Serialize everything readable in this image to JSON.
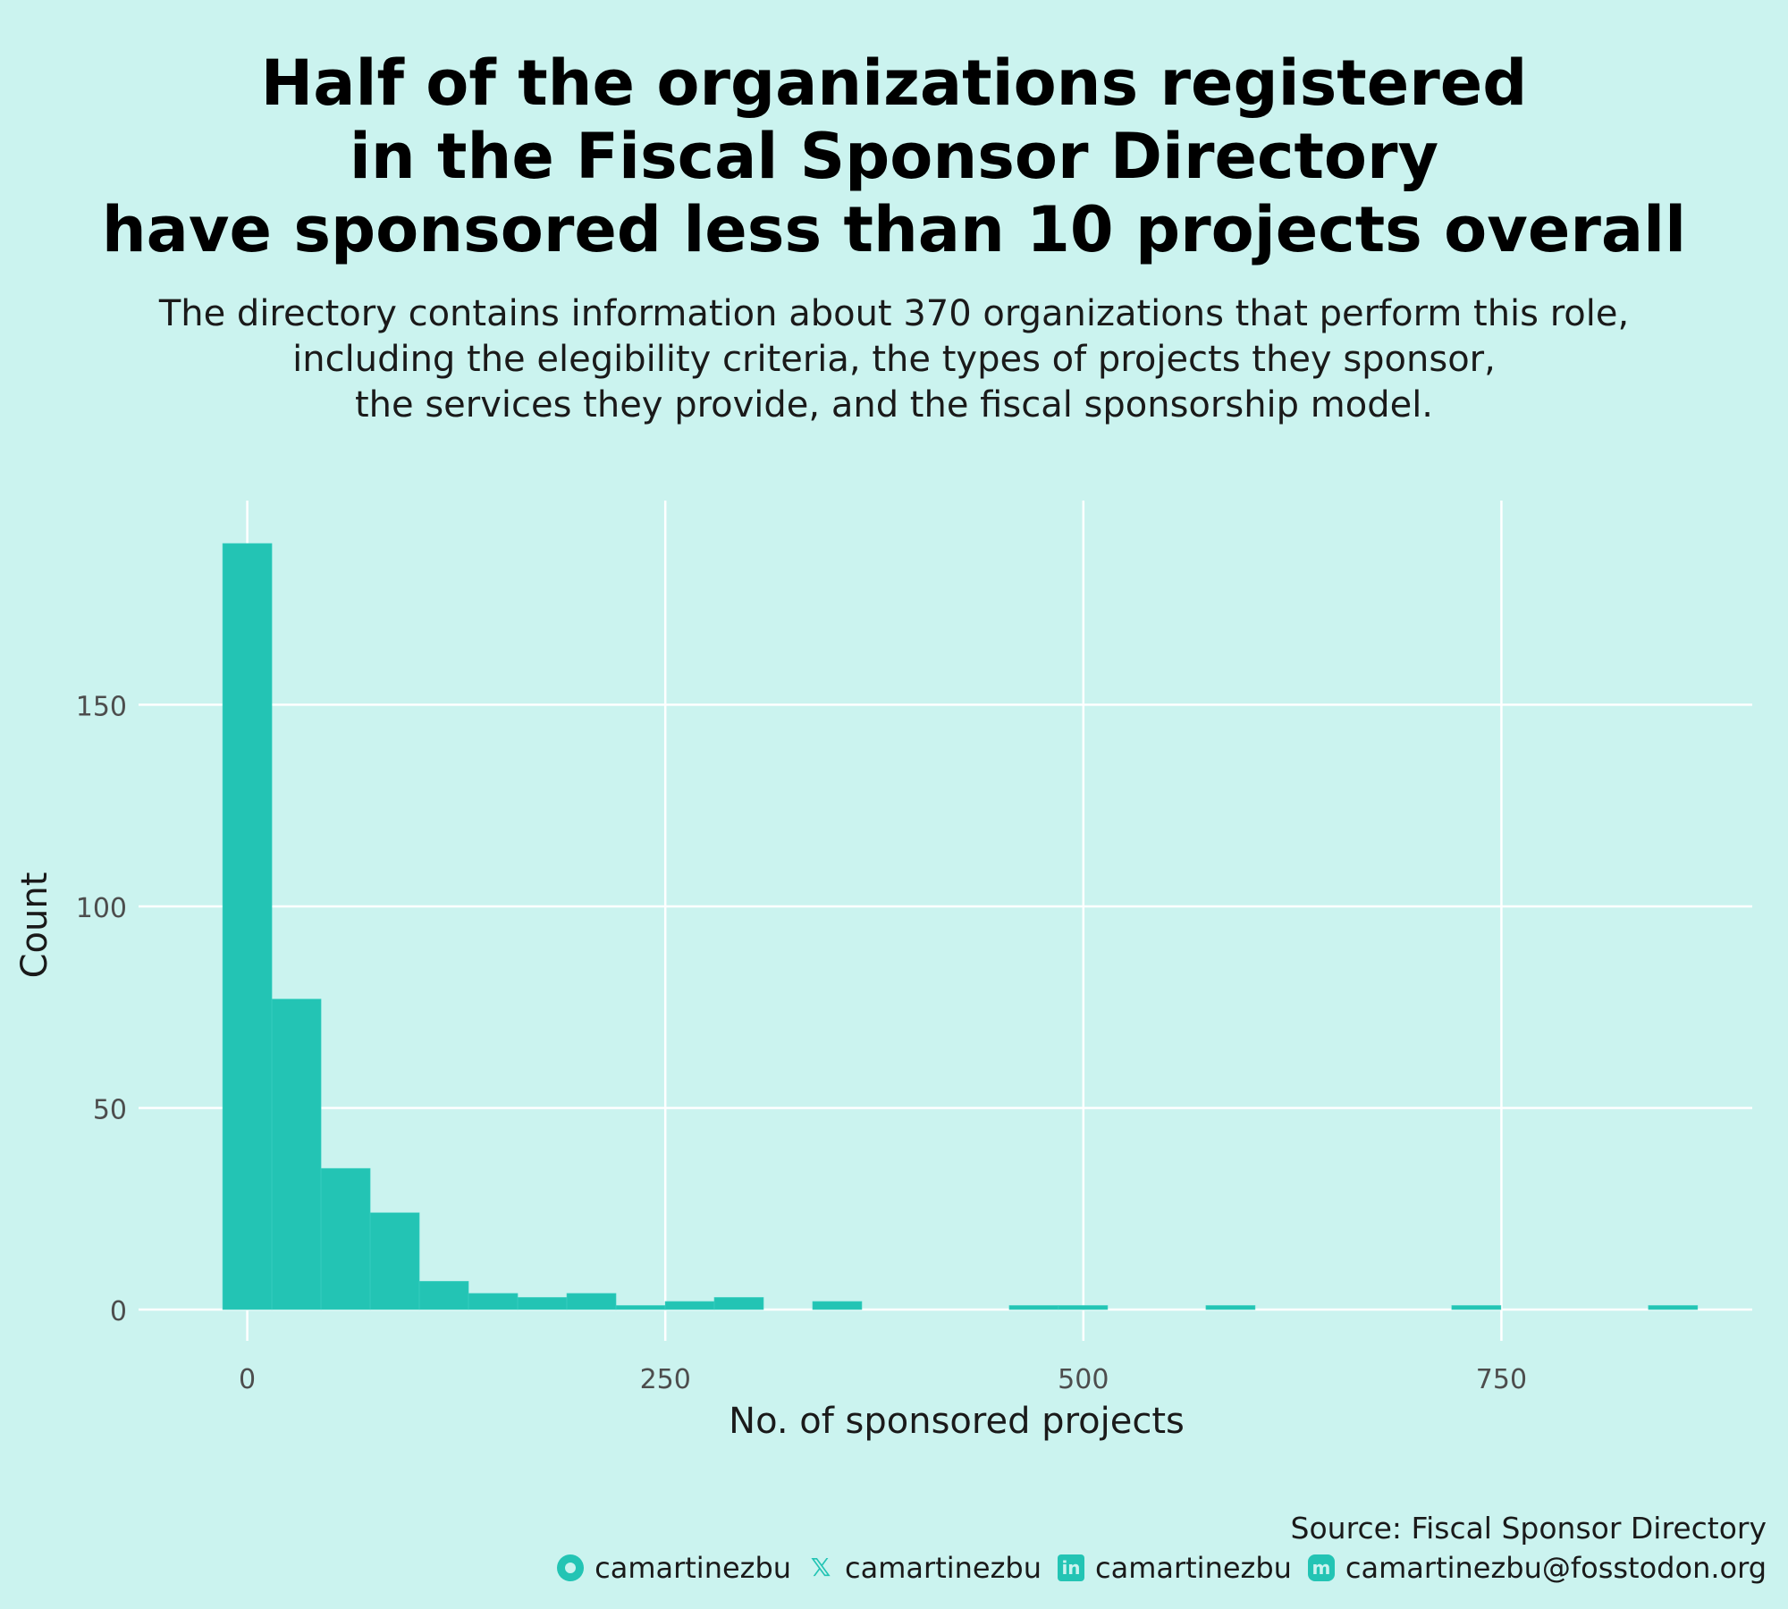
{
  "title_lines": [
    "Half of the organizations registered",
    "in the Fiscal Sponsor Directory",
    "have sponsored less than 10 projects overall"
  ],
  "subtitle_lines": [
    "The directory contains information about 370 organizations that perform this role,",
    "including the elegibility criteria, the types of projects they sponsor,",
    "the services they provide, and the fiscal sponsorship model."
  ],
  "source": "Source: Fiscal Sponsor Directory",
  "socials": [
    {
      "icon": "github-icon",
      "glyph": "",
      "label": "camartinezbu"
    },
    {
      "icon": "x-icon",
      "glyph": "𝕏",
      "label": "camartinezbu"
    },
    {
      "icon": "linkedin-icon",
      "glyph": "in",
      "label": "camartinezbu"
    },
    {
      "icon": "mastodon-icon",
      "glyph": "m",
      "label": "camartinezbu@fosstodon.org"
    }
  ],
  "colors": {
    "background": "#cbf3ef",
    "bar": "#23c4b4",
    "grid": "#ffffff",
    "tick_text": "#4d4d4d"
  },
  "chart_data": {
    "type": "bar",
    "subtype": "histogram",
    "xlabel": "No. of sponsored projects",
    "ylabel": "Count",
    "xlim": [
      -65,
      900
    ],
    "ylim": [
      0,
      190
    ],
    "xticks": [
      0,
      250,
      500,
      750
    ],
    "yticks": [
      0,
      50,
      100,
      150
    ],
    "grid": true,
    "bins": [
      {
        "x0": -14.7,
        "x1": 14.7,
        "count": 190
      },
      {
        "x0": 14.7,
        "x1": 44.1,
        "count": 77
      },
      {
        "x0": 44.1,
        "x1": 73.5,
        "count": 35
      },
      {
        "x0": 73.5,
        "x1": 102.9,
        "count": 24
      },
      {
        "x0": 102.9,
        "x1": 132.3,
        "count": 7
      },
      {
        "x0": 132.3,
        "x1": 161.7,
        "count": 4
      },
      {
        "x0": 161.7,
        "x1": 191.1,
        "count": 3
      },
      {
        "x0": 191.1,
        "x1": 220.5,
        "count": 4
      },
      {
        "x0": 220.5,
        "x1": 249.9,
        "count": 1
      },
      {
        "x0": 249.9,
        "x1": 279.3,
        "count": 2
      },
      {
        "x0": 279.3,
        "x1": 308.7,
        "count": 3
      },
      {
        "x0": 338.1,
        "x1": 367.5,
        "count": 2
      },
      {
        "x0": 455.7,
        "x1": 485.1,
        "count": 1
      },
      {
        "x0": 485.1,
        "x1": 514.5,
        "count": 1
      },
      {
        "x0": 573.3,
        "x1": 602.7,
        "count": 1
      },
      {
        "x0": 720.3,
        "x1": 749.7,
        "count": 1
      },
      {
        "x0": 837.9,
        "x1": 867.3,
        "count": 1
      }
    ]
  }
}
